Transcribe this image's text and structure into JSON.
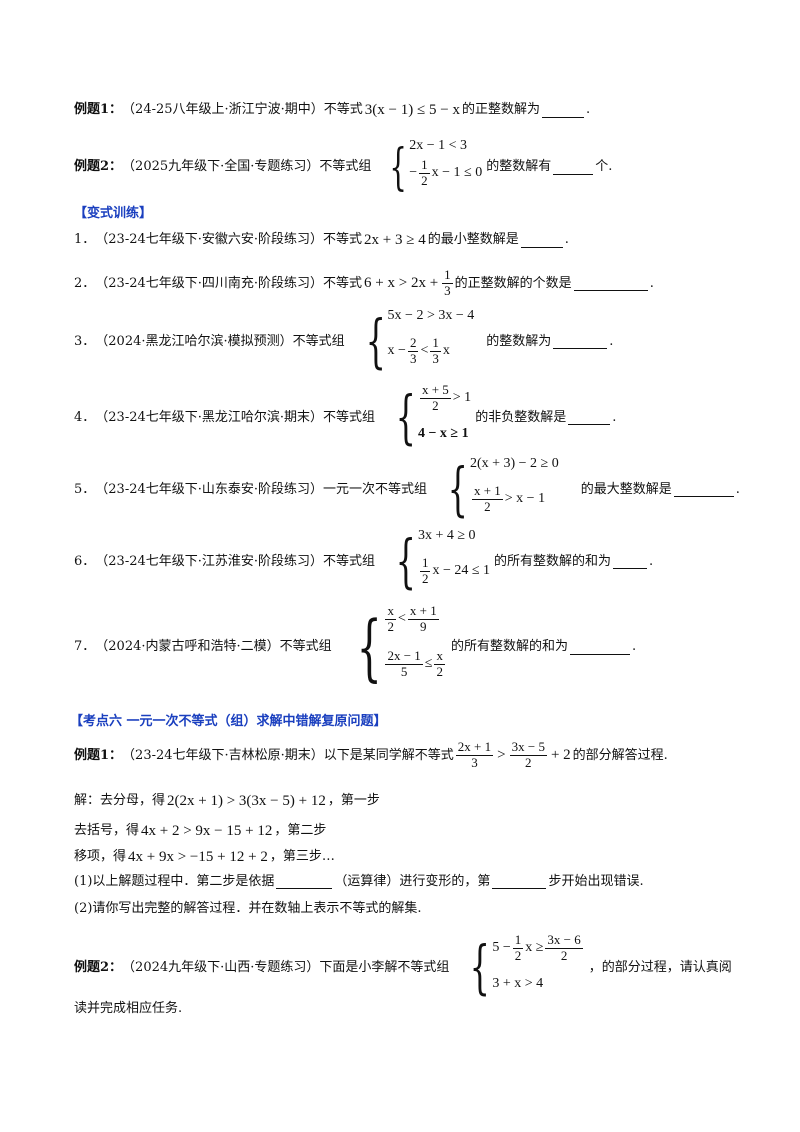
{
  "ex1": {
    "label": "例题1：",
    "src": "（24-25八年级上·浙江宁波·期中）不等式",
    "math": "3(x − 1) ≤ 5 − x",
    "tail": "的正整数解为",
    "end": "."
  },
  "ex2": {
    "label": "例题2：",
    "src": "（2025九年级下·全国·专题练习）不等式组",
    "r1": "2x − 1 < 3",
    "r2a": "−",
    "r2n": "1",
    "r2d": "2",
    "r2b": "x − 1 ≤ 0",
    "tail": "的整数解有",
    "end": "个."
  },
  "heading1": "【变式训练】",
  "q1": {
    "num": "1．",
    "src": "（23-24七年级下·安徽六安·阶段练习）不等式",
    "math": "2x + 3 ≥ 4",
    "tail": "的最小整数解是",
    "end": "."
  },
  "q2": {
    "num": "2．",
    "src": "（23-24七年级下·四川南充·阶段练习）不等式",
    "math": "6 + x > 2x +",
    "fn": "1",
    "fd": "3",
    "tail": "的正整数解的个数是",
    "end": "."
  },
  "q3": {
    "num": "3．",
    "src": "（2024·黑龙江哈尔滨·模拟预测）不等式组",
    "r1": "5x − 2 > 3x − 4",
    "r2a": "x −",
    "f1n": "2",
    "f1d": "3",
    "r2b": "<",
    "f2n": "1",
    "f2d": "3",
    "r2c": "x",
    "tail": "的整数解为",
    "end": "."
  },
  "q4": {
    "num": "4．",
    "src": "（23-24七年级下·黑龙江哈尔滨·期末）不等式组",
    "fn": "x + 5",
    "fd": "2",
    "r1b": "> 1",
    "r2": "4 − x ≥ 1",
    "tail": "的非负整数解是",
    "end": "."
  },
  "q5": {
    "num": "5．",
    "src": "（23-24七年级下·山东泰安·阶段练习）一元一次不等式组",
    "r1": "2(x + 3) − 2 ≥ 0",
    "fn": "x + 1",
    "fd": "2",
    "r2b": "> x − 1",
    "tail": "的最大整数解是",
    "end": "."
  },
  "q6": {
    "num": "6．",
    "src": "（23-24七年级下·江苏淮安·阶段练习）不等式组",
    "r1": "3x + 4 ≥ 0",
    "fn": "1",
    "fd": "2",
    "r2b": "x − 24 ≤ 1",
    "tail": "的所有整数解的和为",
    "end": "."
  },
  "q7": {
    "num": "7．",
    "src": "（2024·内蒙古呼和浩特·二模）不等式组",
    "a1n": "x",
    "a1d": "2",
    "lt": "<",
    "a2n": "x + 1",
    "a2d": "9",
    "b1n": "2x − 1",
    "b1d": "5",
    "le": "≤",
    "b2n": "x",
    "b2d": "2",
    "tail": "的所有整数解的和为",
    "end": "."
  },
  "heading2": "【考点六  一元一次不等式（组）求解中错解复原问题】",
  "ex3": {
    "label": "例题1：",
    "src": "（23-24七年级下·吉林松原·期末）以下是某同学解不等式",
    "f1n": "2x + 1",
    "f1d": "3",
    "gt": ">",
    "f2n": "3x − 5",
    "f2d": "2",
    "plus": "+ 2",
    "tail": "的部分解答过程."
  },
  "sol": {
    "s1a": "解：去分母，得",
    "s1m": "2(2x + 1) > 3(3x − 5) + 12",
    "s1b": "，第一步",
    "s2a": "去括号，得",
    "s2m": "4x + 2 > 9x − 15 + 12",
    "s2b": "，第二步",
    "s3a": "移项，得",
    "s3m": "4x + 9x > −15 + 12 + 2",
    "s3b": "，第三步…",
    "p1a": "(1)以上解题过程中．第二步是依据",
    "p1b": "（运算律）进行变形的，第",
    "p1c": "步开始出现错误.",
    "p2": "(2)请你写出完整的解答过程．并在数轴上表示不等式的解集."
  },
  "ex4": {
    "label": "例题2：",
    "src": "（2024九年级下·山西·专题练习）下面是小李解不等式组",
    "r1a": "5 −",
    "f1n": "1",
    "f1d": "2",
    "r1b": "x ≥",
    "f2n": "3x − 6",
    "f2d": "2",
    "r2": "3 + x > 4",
    "tail": "，的部分过程，请认真阅",
    "tail2": "读并完成相应任务."
  }
}
